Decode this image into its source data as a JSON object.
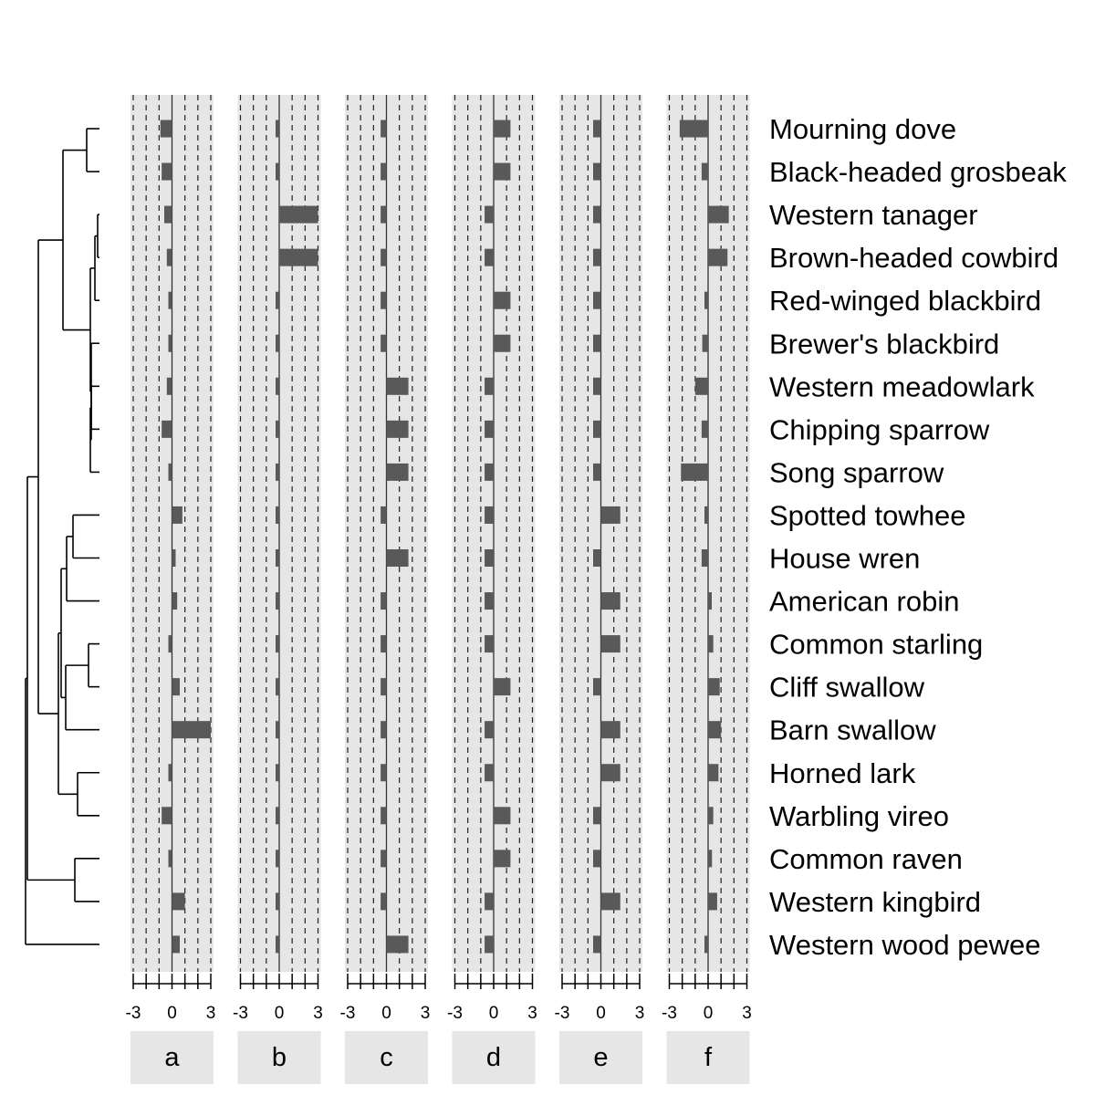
{
  "chart_data": {
    "type": "bar",
    "orientation": "horizontal",
    "description_panels": "small multiples, one column per trait",
    "xlim": [
      -3,
      3
    ],
    "x_tick_labels": [
      "-3",
      "0",
      "3"
    ],
    "x_ticks_minor": [
      -3,
      -2,
      -1,
      0,
      1,
      2,
      3
    ],
    "grid": true,
    "species": [
      "Mourning dove",
      "Black-headed grosbeak",
      "Western tanager",
      "Brown-headed cowbird",
      "Red-winged blackbird",
      "Brewer's blackbird",
      "Western meadowlark",
      "Chipping sparrow",
      "Song sparrow",
      "Spotted towhee",
      "House wren",
      "American robin",
      "Common starling",
      "Cliff swallow",
      "Barn swallow",
      "Horned lark",
      "Warbling vireo",
      "Common raven",
      "Western kingbird",
      "Western wood pewee"
    ],
    "panels": [
      {
        "name": "a",
        "values": [
          -0.9,
          -0.8,
          -0.6,
          -0.4,
          -0.25,
          -0.05,
          -0.4,
          -0.8,
          -0.05,
          0.8,
          0.05,
          0.4,
          -0.05,
          0.6,
          3.0,
          -0.15,
          -0.8,
          -0.05,
          1.0,
          0.6
        ]
      },
      {
        "name": "b",
        "values": [
          -0.2,
          -0.2,
          3.0,
          3.0,
          -0.2,
          -0.2,
          -0.2,
          -0.2,
          -0.2,
          -0.2,
          -0.2,
          -0.2,
          -0.2,
          -0.2,
          -0.2,
          -0.2,
          -0.2,
          -0.2,
          -0.2,
          -0.2
        ]
      },
      {
        "name": "c",
        "values": [
          -0.45,
          -0.45,
          -0.45,
          -0.45,
          -0.45,
          -0.45,
          1.7,
          1.7,
          1.7,
          -0.45,
          1.7,
          -0.45,
          -0.45,
          -0.45,
          -0.45,
          -0.45,
          -0.45,
          -0.45,
          -0.45,
          1.7
        ]
      },
      {
        "name": "d",
        "values": [
          1.3,
          1.3,
          -0.7,
          -0.7,
          1.3,
          1.3,
          -0.7,
          -0.7,
          -0.7,
          -0.7,
          -0.7,
          -0.7,
          -0.7,
          1.3,
          -0.7,
          -0.7,
          1.3,
          1.3,
          -0.7,
          -0.7
        ]
      },
      {
        "name": "e",
        "values": [
          -0.6,
          -0.6,
          -0.6,
          -0.6,
          -0.6,
          -0.6,
          -0.6,
          -0.6,
          -0.6,
          1.5,
          -0.6,
          1.5,
          1.5,
          -0.6,
          1.5,
          1.5,
          -0.6,
          -0.6,
          1.5,
          -0.6
        ]
      },
      {
        "name": "f",
        "values": [
          -2.2,
          -0.5,
          1.6,
          1.5,
          -0.05,
          -0.45,
          -1.0,
          -0.5,
          -2.1,
          -0.05,
          -0.5,
          0.1,
          0.4,
          0.9,
          1.0,
          0.8,
          0.4,
          0.3,
          0.7,
          -0.05
        ]
      }
    ]
  }
}
